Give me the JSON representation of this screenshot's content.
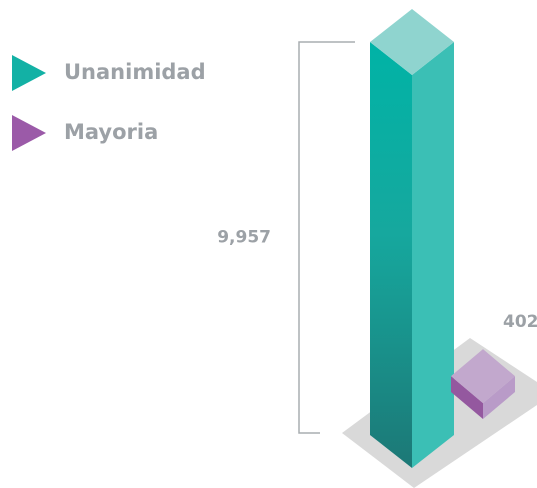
{
  "chart_data": {
    "type": "bar",
    "categories": [
      "Unanimidad",
      "Mayoria"
    ],
    "values": [
      9957,
      402
    ],
    "value_labels": [
      "9,957",
      "402"
    ],
    "colors": [
      "#13b1a5",
      "#9b5aa8"
    ]
  }
}
